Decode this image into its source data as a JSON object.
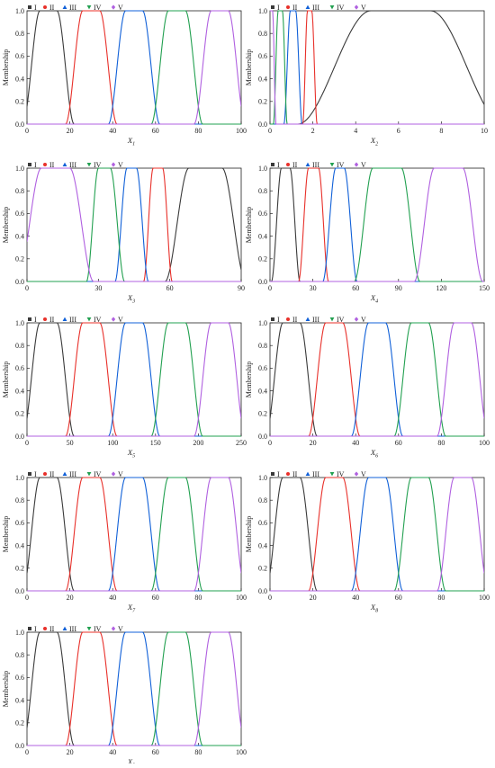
{
  "colors": {
    "I": "#3a3a3a",
    "II": "#e8302a",
    "III": "#1060d8",
    "IV": "#22a050",
    "V": "#b060e0",
    "axis": "#222222"
  },
  "legend": {
    "items": [
      {
        "key": "I",
        "label": "I",
        "marker": "square"
      },
      {
        "key": "II",
        "label": "II",
        "marker": "circle"
      },
      {
        "key": "III",
        "label": "III",
        "marker": "triangle-up"
      },
      {
        "key": "IV",
        "label": "IV",
        "marker": "triangle-down"
      },
      {
        "key": "V",
        "label": "V",
        "marker": "diamond"
      }
    ],
    "placement": "top-left"
  },
  "chart_data": [
    {
      "type": "line",
      "xlabel": "X",
      "xsub": "1",
      "ylabel": "Membership",
      "xlim": [
        0,
        100
      ],
      "ylim": [
        0,
        1.0
      ],
      "xticks": [
        0,
        20,
        40,
        60,
        80,
        100
      ],
      "xtick_labels": [
        "0",
        "20",
        "40",
        "60",
        "80",
        "100"
      ],
      "yticks": [
        0,
        0.2,
        0.4,
        0.6,
        0.8,
        1.0
      ],
      "ytick_labels": [
        "0.0",
        "0.2",
        "0.4",
        "0.6",
        "0.8",
        "1.0"
      ],
      "series": [
        {
          "name": "I",
          "plateau": [
            6,
            14
          ],
          "ramp": [
            8,
            8
          ]
        },
        {
          "name": "II",
          "plateau": [
            26,
            34
          ],
          "ramp": [
            8,
            8
          ]
        },
        {
          "name": "III",
          "plateau": [
            46,
            54
          ],
          "ramp": [
            8,
            8
          ]
        },
        {
          "name": "IV",
          "plateau": [
            66,
            74
          ],
          "ramp": [
            8,
            8
          ]
        },
        {
          "name": "V",
          "plateau": [
            86,
            94
          ],
          "ramp": [
            8,
            8
          ]
        }
      ]
    },
    {
      "type": "line",
      "xlabel": "X",
      "xsub": "2",
      "ylabel": "Membership",
      "xlim": [
        0,
        10
      ],
      "ylim": [
        0,
        1.0
      ],
      "xticks": [
        0,
        2,
        4,
        6,
        8,
        10
      ],
      "xtick_labels": [
        "0",
        "2",
        "4",
        "6",
        "8",
        "10"
      ],
      "yticks": [
        0,
        0.2,
        0.4,
        0.6,
        0.8,
        1.0
      ],
      "ytick_labels": [
        "0.0",
        "0.2",
        "0.4",
        "0.6",
        "0.8",
        "1.0"
      ],
      "series": [
        {
          "name": "I",
          "plateau": [
            4.7,
            7.5
          ],
          "ramp": [
            3.4,
            3.4
          ]
        },
        {
          "name": "II",
          "plateau": [
            1.75,
            1.95
          ],
          "ramp": [
            0.22,
            0.25
          ]
        },
        {
          "name": "III",
          "plateau": [
            0.95,
            1.2
          ],
          "ramp": [
            0.3,
            0.3
          ]
        },
        {
          "name": "IV",
          "plateau": [
            0.38,
            0.58
          ],
          "ramp": [
            0.22,
            0.22
          ]
        },
        {
          "name": "V",
          "plateau": [
            0.0,
            0.12
          ],
          "ramp": [
            0.1,
            0.16
          ]
        }
      ]
    },
    {
      "type": "line",
      "xlabel": "X",
      "xsub": "3",
      "ylabel": "Membership",
      "xlim": [
        0,
        90
      ],
      "ylim": [
        0,
        1.0
      ],
      "xticks": [
        0,
        30,
        60,
        90
      ],
      "xtick_labels": [
        "0",
        "30",
        "60",
        "90"
      ],
      "yticks": [
        0,
        0.2,
        0.4,
        0.6,
        0.8,
        1.0
      ],
      "ytick_labels": [
        "0.0",
        "0.2",
        "0.4",
        "0.6",
        "0.8",
        "1.0"
      ],
      "series": [
        {
          "name": "I",
          "plateau": [
            68,
            82
          ],
          "ramp": [
            10,
            10
          ]
        },
        {
          "name": "II",
          "plateau": [
            53,
            57
          ],
          "ramp": [
            4,
            4
          ]
        },
        {
          "name": "III",
          "plateau": [
            42,
            46
          ],
          "ramp": [
            5,
            5
          ]
        },
        {
          "name": "IV",
          "plateau": [
            30,
            35
          ],
          "ramp": [
            5,
            6
          ]
        },
        {
          "name": "V",
          "plateau": [
            6,
            18
          ],
          "ramp": [
            10,
            10
          ]
        }
      ]
    },
    {
      "type": "line",
      "xlabel": "X",
      "xsub": "4",
      "ylabel": "Membership",
      "xlim": [
        0,
        150
      ],
      "ylim": [
        0,
        1.0
      ],
      "xticks": [
        0,
        30,
        60,
        90,
        120,
        150
      ],
      "xtick_labels": [
        "0",
        "30",
        "60",
        "90",
        "120",
        "150"
      ],
      "yticks": [
        0,
        0.2,
        0.4,
        0.6,
        0.8,
        1.0
      ],
      "ytick_labels": [
        "0.0",
        "0.2",
        "0.4",
        "0.6",
        "0.8",
        "1.0"
      ],
      "series": [
        {
          "name": "I",
          "plateau": [
            8,
            14
          ],
          "ramp": [
            7,
            7
          ]
        },
        {
          "name": "II",
          "plateau": [
            27,
            34
          ],
          "ramp": [
            7,
            7
          ]
        },
        {
          "name": "III",
          "plateau": [
            46,
            52
          ],
          "ramp": [
            9,
            9
          ]
        },
        {
          "name": "IV",
          "plateau": [
            72,
            92
          ],
          "ramp": [
            13,
            13
          ]
        },
        {
          "name": "V",
          "plateau": [
            115,
            135
          ],
          "ramp": [
            14,
            14
          ]
        }
      ]
    },
    {
      "type": "line",
      "xlabel": "X",
      "xsub": "5",
      "ylabel": "Membership",
      "xlim": [
        0,
        250
      ],
      "ylim": [
        0,
        1.0
      ],
      "xticks": [
        0,
        50,
        100,
        150,
        200,
        250
      ],
      "xtick_labels": [
        "0",
        "50",
        "100",
        "150",
        "200",
        "250"
      ],
      "yticks": [
        0,
        0.2,
        0.4,
        0.6,
        0.8,
        1.0
      ],
      "ytick_labels": [
        "0.0",
        "0.2",
        "0.4",
        "0.6",
        "0.8",
        "1.0"
      ],
      "series": [
        {
          "name": "I",
          "plateau": [
            15,
            35
          ],
          "ramp": [
            20,
            20
          ]
        },
        {
          "name": "II",
          "plateau": [
            65,
            85
          ],
          "ramp": [
            20,
            20
          ]
        },
        {
          "name": "III",
          "plateau": [
            115,
            135
          ],
          "ramp": [
            20,
            20
          ]
        },
        {
          "name": "IV",
          "plateau": [
            165,
            185
          ],
          "ramp": [
            20,
            20
          ]
        },
        {
          "name": "V",
          "plateau": [
            215,
            235
          ],
          "ramp": [
            20,
            20
          ]
        }
      ]
    },
    {
      "type": "line",
      "xlabel": "X",
      "xsub": "6",
      "ylabel": "Membership",
      "xlim": [
        0,
        100
      ],
      "ylim": [
        0,
        1.0
      ],
      "xticks": [
        0,
        20,
        40,
        60,
        80,
        100
      ],
      "xtick_labels": [
        "0",
        "20",
        "40",
        "60",
        "80",
        "100"
      ],
      "yticks": [
        0,
        0.2,
        0.4,
        0.6,
        0.8,
        1.0
      ],
      "ytick_labels": [
        "0.0",
        "0.2",
        "0.4",
        "0.6",
        "0.8",
        "1.0"
      ],
      "series": [
        {
          "name": "I",
          "plateau": [
            6,
            14
          ],
          "ramp": [
            8,
            8
          ]
        },
        {
          "name": "II",
          "plateau": [
            26,
            34
          ],
          "ramp": [
            8,
            8
          ]
        },
        {
          "name": "III",
          "plateau": [
            46,
            54
          ],
          "ramp": [
            8,
            8
          ]
        },
        {
          "name": "IV",
          "plateau": [
            66,
            74
          ],
          "ramp": [
            8,
            8
          ]
        },
        {
          "name": "V",
          "plateau": [
            86,
            94
          ],
          "ramp": [
            8,
            8
          ]
        }
      ]
    },
    {
      "type": "line",
      "xlabel": "X",
      "xsub": "7",
      "ylabel": "Membership",
      "xlim": [
        0,
        100
      ],
      "ylim": [
        0,
        1.0
      ],
      "xticks": [
        0,
        20,
        40,
        60,
        80,
        100
      ],
      "xtick_labels": [
        "0",
        "20",
        "40",
        "60",
        "80",
        "100"
      ],
      "yticks": [
        0,
        0.2,
        0.4,
        0.6,
        0.8,
        1.0
      ],
      "ytick_labels": [
        "0.0",
        "0.2",
        "0.4",
        "0.6",
        "0.8",
        "1.0"
      ],
      "series": [
        {
          "name": "I",
          "plateau": [
            6,
            14
          ],
          "ramp": [
            8,
            8
          ]
        },
        {
          "name": "II",
          "plateau": [
            26,
            34
          ],
          "ramp": [
            8,
            8
          ]
        },
        {
          "name": "III",
          "plateau": [
            46,
            54
          ],
          "ramp": [
            8,
            8
          ]
        },
        {
          "name": "IV",
          "plateau": [
            66,
            74
          ],
          "ramp": [
            8,
            8
          ]
        },
        {
          "name": "V",
          "plateau": [
            86,
            94
          ],
          "ramp": [
            8,
            8
          ]
        }
      ]
    },
    {
      "type": "line",
      "xlabel": "X",
      "xsub": "8",
      "ylabel": "Membership",
      "xlim": [
        0,
        100
      ],
      "ylim": [
        0,
        1.0
      ],
      "xticks": [
        0,
        20,
        40,
        60,
        80,
        100
      ],
      "xtick_labels": [
        "0",
        "20",
        "40",
        "60",
        "80",
        "100"
      ],
      "yticks": [
        0,
        0.2,
        0.4,
        0.6,
        0.8,
        1.0
      ],
      "ytick_labels": [
        "0.0",
        "0.2",
        "0.4",
        "0.6",
        "0.8",
        "1.0"
      ],
      "series": [
        {
          "name": "I",
          "plateau": [
            6,
            14
          ],
          "ramp": [
            8,
            8
          ]
        },
        {
          "name": "II",
          "plateau": [
            26,
            34
          ],
          "ramp": [
            8,
            8
          ]
        },
        {
          "name": "III",
          "plateau": [
            46,
            54
          ],
          "ramp": [
            8,
            8
          ]
        },
        {
          "name": "IV",
          "plateau": [
            66,
            74
          ],
          "ramp": [
            8,
            8
          ]
        },
        {
          "name": "V",
          "plateau": [
            86,
            94
          ],
          "ramp": [
            8,
            8
          ]
        }
      ]
    },
    {
      "type": "line",
      "xlabel": "X",
      "xsub": "9",
      "ylabel": "Membership",
      "xlim": [
        0,
        100
      ],
      "ylim": [
        0,
        1.0
      ],
      "xticks": [
        0,
        20,
        40,
        60,
        80,
        100
      ],
      "xtick_labels": [
        "0",
        "20",
        "40",
        "60",
        "80",
        "100"
      ],
      "yticks": [
        0,
        0.2,
        0.4,
        0.6,
        0.8,
        1.0
      ],
      "ytick_labels": [
        "0.0",
        "0.2",
        "0.4",
        "0.6",
        "0.8",
        "1.0"
      ],
      "series": [
        {
          "name": "I",
          "plateau": [
            6,
            14
          ],
          "ramp": [
            8,
            8
          ]
        },
        {
          "name": "II",
          "plateau": [
            26,
            34
          ],
          "ramp": [
            8,
            8
          ]
        },
        {
          "name": "III",
          "plateau": [
            46,
            54
          ],
          "ramp": [
            8,
            8
          ]
        },
        {
          "name": "IV",
          "plateau": [
            66,
            74
          ],
          "ramp": [
            8,
            8
          ]
        },
        {
          "name": "V",
          "plateau": [
            86,
            94
          ],
          "ramp": [
            8,
            8
          ]
        }
      ]
    }
  ]
}
